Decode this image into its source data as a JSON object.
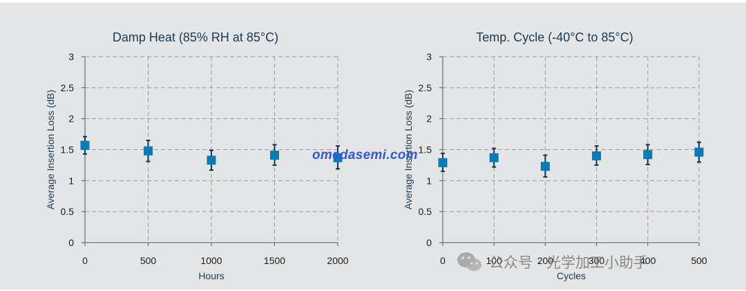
{
  "colors": {
    "marker": "#0b7bb5",
    "errorbar": "#12344a",
    "grid": "#9a9a9a",
    "axis": "#555555",
    "background": "#e4e5e6"
  },
  "watermark": "omedasemi.com",
  "wechat_label": "公众号 · 光学加工小助手",
  "wechat_icon": "wechat-icon",
  "chart_data": [
    {
      "type": "scatter",
      "title": "Damp Heat (85% RH at 85°C)",
      "xlabel": "Hours",
      "ylabel": "Average Insertion Loss (dB)",
      "xlim": [
        0,
        2000
      ],
      "ylim": [
        0,
        3
      ],
      "xticks": [
        "0",
        "500",
        "1000",
        "1500",
        "2000"
      ],
      "yticks": [
        "0",
        "0.5",
        "1",
        "1.5",
        "2",
        "2.5",
        "3"
      ],
      "grid": true,
      "points": [
        {
          "x": 0,
          "y": 1.57,
          "err_low": 1.43,
          "err_high": 1.71
        },
        {
          "x": 500,
          "y": 1.48,
          "err_low": 1.31,
          "err_high": 1.65
        },
        {
          "x": 1000,
          "y": 1.33,
          "err_low": 1.17,
          "err_high": 1.49
        },
        {
          "x": 1500,
          "y": 1.41,
          "err_low": 1.25,
          "err_high": 1.58
        },
        {
          "x": 2000,
          "y": 1.37,
          "err_low": 1.19,
          "err_high": 1.56
        }
      ]
    },
    {
      "type": "scatter",
      "title": "Temp. Cycle (-40°C to 85°C)",
      "xlabel": "Cycles",
      "ylabel": "Average Insertion Loss (dB)",
      "xlim": [
        0,
        500
      ],
      "ylim": [
        0,
        3
      ],
      "xticks": [
        "0",
        "100",
        "200",
        "300",
        "400",
        "500"
      ],
      "yticks": [
        "0",
        "0.5",
        "1",
        "1.5",
        "2",
        "2.5",
        "3"
      ],
      "grid": true,
      "points": [
        {
          "x": 0,
          "y": 1.29,
          "err_low": 1.15,
          "err_high": 1.44
        },
        {
          "x": 100,
          "y": 1.37,
          "err_low": 1.22,
          "err_high": 1.52
        },
        {
          "x": 200,
          "y": 1.23,
          "err_low": 1.06,
          "err_high": 1.41
        },
        {
          "x": 300,
          "y": 1.4,
          "err_low": 1.25,
          "err_high": 1.56
        },
        {
          "x": 400,
          "y": 1.42,
          "err_low": 1.26,
          "err_high": 1.58
        },
        {
          "x": 500,
          "y": 1.46,
          "err_low": 1.3,
          "err_high": 1.62
        }
      ]
    }
  ]
}
